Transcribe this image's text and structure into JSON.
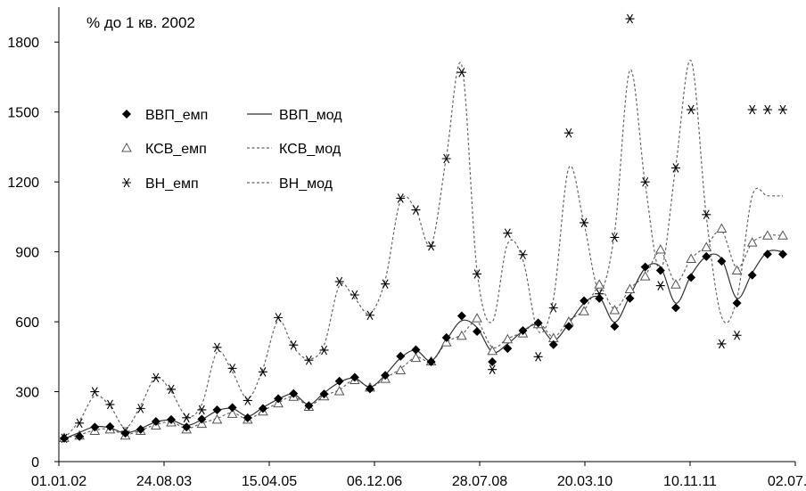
{
  "chart_data": {
    "type": "line",
    "title": "% до 1 кв. 2002",
    "xlabel": "",
    "ylabel": "",
    "ylim": [
      0,
      1950
    ],
    "yticks": [
      0,
      300,
      600,
      900,
      1200,
      1500,
      1800
    ],
    "x_tick_labels": [
      "01.01.02",
      "24.08.03",
      "15.04.05",
      "06.12.06",
      "28.07.08",
      "20.03.10",
      "10.11.11",
      "02.07.13"
    ],
    "x_period": "quarterly, 2002 Q1 – 2013 Q4",
    "grid": false,
    "legend_position": "upper-left",
    "colors": {
      "axis": "#000000",
      "line": "#333333",
      "model": "#666666"
    },
    "series": [
      {
        "name": "ВВП_емп",
        "style": "diamond-marker",
        "values": [
          100,
          108,
          148,
          150,
          122,
          138,
          172,
          180,
          148,
          182,
          222,
          232,
          188,
          228,
          270,
          292,
          240,
          290,
          345,
          362,
          312,
          370,
          452,
          480,
          428,
          532,
          625,
          558,
          428,
          485,
          562,
          595,
          502,
          580,
          690,
          700,
          580,
          700,
          835,
          820,
          660,
          790,
          880,
          860,
          680,
          800,
          890,
          890
        ]
      },
      {
        "name": "КСВ_емп",
        "style": "triangle-marker",
        "values": [
          102,
          112,
          132,
          138,
          112,
          132,
          155,
          168,
          138,
          162,
          180,
          205,
          180,
          215,
          250,
          278,
          235,
          280,
          302,
          350,
          318,
          355,
          392,
          445,
          430,
          512,
          540,
          615,
          475,
          525,
          550,
          590,
          530,
          600,
          645,
          760,
          650,
          740,
          795,
          910,
          760,
          870,
          920,
          1000,
          820,
          940,
          970,
          970
        ]
      },
      {
        "name": "ВН_емп",
        "style": "asterisk-marker",
        "values": [
          100,
          165,
          300,
          245,
          130,
          228,
          360,
          310,
          188,
          222,
          490,
          400,
          262,
          385,
          618,
          500,
          435,
          478,
          772,
          715,
          628,
          762,
          1130,
          1080,
          925,
          1300,
          1670,
          805,
          395,
          980,
          888,
          450,
          660,
          1410,
          1025,
          720,
          962,
          1900,
          1200,
          755,
          1260,
          1510,
          1060,
          505,
          542,
          1510,
          1510,
          1510
        ]
      },
      {
        "name": "ВВП_мод",
        "style": "solid-line",
        "values": [
          98,
          125,
          150,
          145,
          122,
          142,
          170,
          178,
          155,
          180,
          218,
          228,
          195,
          232,
          268,
          290,
          245,
          295,
          340,
          358,
          320,
          372,
          445,
          478,
          432,
          522,
          605,
          575,
          470,
          505,
          560,
          588,
          520,
          592,
          680,
          705,
          598,
          712,
          830,
          835,
          680,
          800,
          880,
          870,
          700,
          810,
          900,
          900
        ]
      },
      {
        "name": "КСВ_мод",
        "style": "dashed-line",
        "values": [
          100,
          115,
          135,
          140,
          115,
          135,
          158,
          170,
          142,
          165,
          185,
          210,
          182,
          218,
          252,
          280,
          240,
          282,
          308,
          352,
          320,
          358,
          398,
          448,
          430,
          510,
          545,
          600,
          490,
          528,
          555,
          598,
          535,
          605,
          650,
          748,
          655,
          742,
          800,
          900,
          770,
          870,
          925,
          990,
          830,
          940,
          970,
          970
        ]
      },
      {
        "name": "ВН_мод",
        "style": "dashed-line",
        "values": [
          100,
          175,
          282,
          238,
          145,
          240,
          362,
          300,
          195,
          245,
          470,
          385,
          270,
          400,
          605,
          490,
          440,
          500,
          755,
          700,
          635,
          780,
          1120,
          1080,
          930,
          1310,
          1700,
          820,
          600,
          935,
          865,
          560,
          700,
          1260,
          1020,
          735,
          985,
          1680,
          1190,
          820,
          1270,
          1720,
          1050,
          620,
          700,
          1140,
          1140,
          1140
        ]
      }
    ]
  }
}
